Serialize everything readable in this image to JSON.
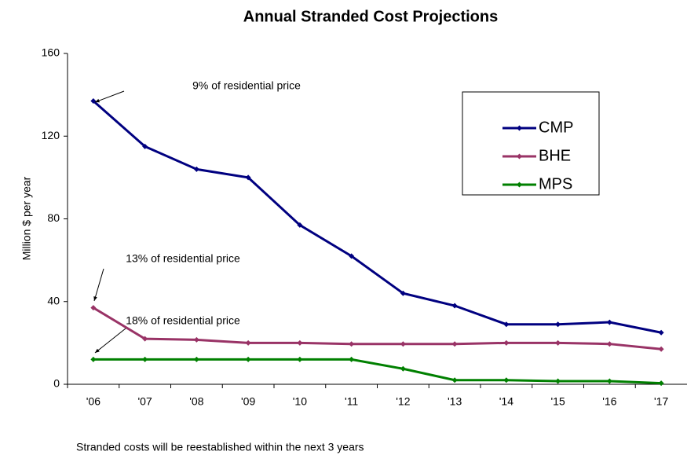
{
  "chart_data": {
    "type": "line",
    "title": "Annual Stranded Cost Projections",
    "y_label": "Million $ per year",
    "categories": [
      "'06",
      "'07",
      "'08",
      "'09",
      "'10",
      "'11",
      "'12",
      "'13",
      "'14",
      "'15",
      "'16",
      "'17"
    ],
    "series": [
      {
        "name": "CMP",
        "color": "#000080",
        "values": [
          137,
          115,
          104,
          100,
          77,
          62,
          44,
          38,
          29,
          29,
          30,
          25
        ]
      },
      {
        "name": "BHE",
        "color": "#993366",
        "values": [
          37,
          22,
          21.5,
          20,
          20,
          19.5,
          19.5,
          19.5,
          20,
          20,
          19.5,
          17
        ]
      },
      {
        "name": "MPS",
        "color": "#008000",
        "values": [
          12,
          12,
          12,
          12,
          12,
          12,
          7.5,
          2,
          2,
          1.5,
          1.5,
          0.5
        ]
      }
    ],
    "ylim": [
      0,
      160
    ],
    "yticks": [
      0,
      40,
      80,
      120,
      160
    ],
    "annotations": [
      "9% of residential price",
      "13% of residential price",
      "18% of residential price"
    ],
    "footnote": "Stranded costs will be reestablished within the next 3 years"
  }
}
